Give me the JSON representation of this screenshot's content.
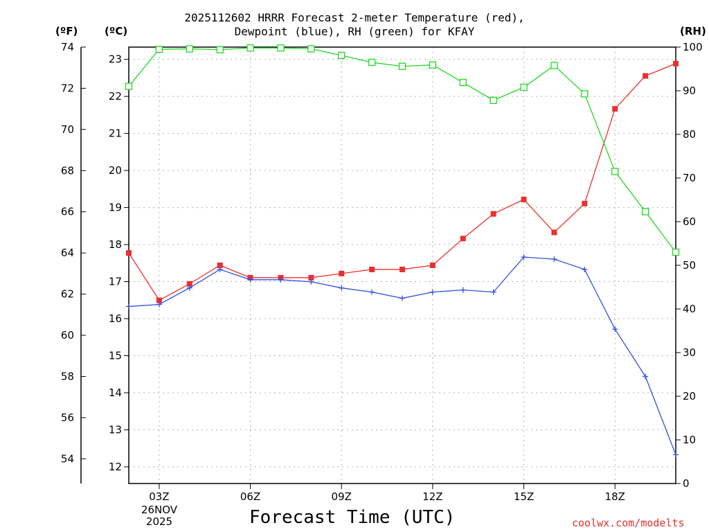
{
  "chart_data": {
    "type": "line",
    "title_line1": "2025112602 HRRR Forecast 2-meter Temperature (red),",
    "title_line2": "Dewpoint (blue), RH (green) for KFAY",
    "xlabel": "Forecast Time (UTC)",
    "watermark": "coolwx.com/modelts",
    "left_axis_f_label": "(ºF)",
    "left_axis_c_label": "(ºC)",
    "right_axis_label": "(RH)",
    "x_ticks": [
      {
        "hour": 3,
        "label": "03Z"
      },
      {
        "hour": 6,
        "label": "06Z"
      },
      {
        "hour": 9,
        "label": "09Z"
      },
      {
        "hour": 12,
        "label": "12Z"
      },
      {
        "hour": 15,
        "label": "15Z"
      },
      {
        "hour": 18,
        "label": "18Z"
      }
    ],
    "date_line1": "26NOV",
    "date_line2": "2025",
    "xlim": [
      2,
      20
    ],
    "f_axis": {
      "ticks": [
        54,
        56,
        58,
        60,
        62,
        64,
        66,
        68,
        70,
        72,
        74
      ],
      "lim": [
        52.8,
        74
      ]
    },
    "c_axis": {
      "ticks": [
        12,
        13,
        14,
        15,
        16,
        17,
        18,
        19,
        20,
        21,
        22,
        23
      ],
      "lim": [
        11.55,
        23.33
      ]
    },
    "rh_axis": {
      "ticks": [
        0,
        10,
        20,
        30,
        40,
        50,
        60,
        70,
        80,
        90,
        100
      ],
      "lim": [
        0,
        100
      ]
    },
    "x": [
      2,
      3,
      4,
      5,
      6,
      7,
      8,
      9,
      10,
      11,
      12,
      13,
      14,
      15,
      16,
      17,
      18,
      19,
      20
    ],
    "series": [
      {
        "name": "Temperature",
        "units": "F",
        "color": "#e83030",
        "marker": "filled-square",
        "values": [
          64.0,
          61.7,
          62.5,
          63.4,
          62.8,
          62.8,
          62.8,
          63.0,
          63.2,
          63.2,
          63.4,
          64.7,
          65.9,
          66.6,
          65.0,
          66.4,
          71.0,
          72.6,
          73.2
        ]
      },
      {
        "name": "Dewpoint",
        "units": "F",
        "color": "#3050e0",
        "marker": "plus",
        "values": [
          61.4,
          61.5,
          62.3,
          63.2,
          62.7,
          62.7,
          62.6,
          62.3,
          62.1,
          61.8,
          62.1,
          62.2,
          62.1,
          63.8,
          63.7,
          63.2,
          60.3,
          58.0,
          54.2
        ]
      },
      {
        "name": "RH",
        "units": "%",
        "color": "#20d820",
        "marker": "open-square",
        "values": [
          91,
          99.5,
          99.6,
          99.4,
          99.8,
          99.8,
          99.6,
          98.1,
          96.5,
          95.6,
          95.9,
          91.9,
          87.8,
          90.8,
          95.8,
          89.3,
          71.5,
          62.3,
          53.0
        ]
      }
    ]
  }
}
